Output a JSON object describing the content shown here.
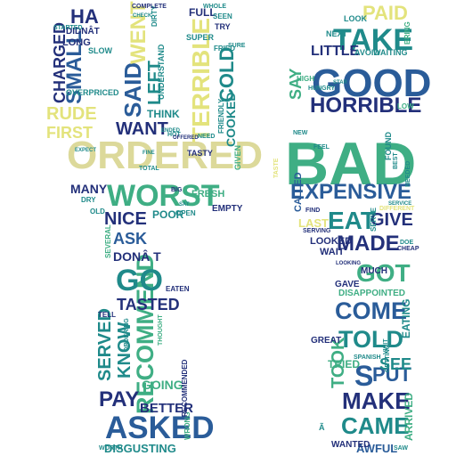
{
  "palette": {
    "navy": "#23307a",
    "blue": "#2a5c99",
    "teal": "#1f8a8a",
    "green": "#3fae84",
    "lime": "#7cc96e",
    "yellow": "#e3e37c",
    "pale": "#dcd99a",
    "background": "#ffffff"
  },
  "words": [
    {
      "text": "BAD",
      "color": "green"
    },
    {
      "text": "ORDERED",
      "color": "pale"
    },
    {
      "text": "RECOMMEND",
      "color": "green"
    },
    {
      "text": "GOOD",
      "color": "blue"
    },
    {
      "text": "WORST",
      "color": "green"
    },
    {
      "text": "ASKED",
      "color": "blue"
    },
    {
      "text": "HORRIBLE",
      "color": "navy"
    },
    {
      "text": "EXPENSIVE",
      "color": "blue"
    },
    {
      "text": "TAKE",
      "color": "teal"
    },
    {
      "text": "TERRIBLE",
      "color": "yellow"
    },
    {
      "text": "EAT",
      "color": "teal"
    },
    {
      "text": "MADE",
      "color": "navy"
    },
    {
      "text": "COME",
      "color": "blue"
    },
    {
      "text": "TOLD",
      "color": "teal"
    },
    {
      "text": "MAKE",
      "color": "navy"
    },
    {
      "text": "CAME",
      "color": "teal"
    },
    {
      "text": "PAY",
      "color": "navy"
    },
    {
      "text": "GO",
      "color": "teal"
    },
    {
      "text": "GOT",
      "color": "green"
    },
    {
      "text": "SERVED",
      "color": "teal"
    },
    {
      "text": "KNOW",
      "color": "teal"
    },
    {
      "text": "SAID",
      "color": "blue"
    },
    {
      "text": "WENT",
      "color": "yellow"
    },
    {
      "text": "SMALL",
      "color": "blue"
    },
    {
      "text": "RUDE",
      "color": "yellow"
    },
    {
      "text": "CHARGED",
      "color": "navy"
    },
    {
      "text": "FIRST",
      "color": "yellow"
    },
    {
      "text": "WANT",
      "color": "navy"
    },
    {
      "text": "LEFT",
      "color": "teal"
    },
    {
      "text": "COLD",
      "color": "teal"
    },
    {
      "text": "COOKED",
      "color": "teal"
    },
    {
      "text": "NICE",
      "color": "navy"
    },
    {
      "text": "ASK",
      "color": "blue"
    },
    {
      "text": "TASTED",
      "color": "navy"
    },
    {
      "text": "BETTER",
      "color": "navy"
    },
    {
      "text": "GOING",
      "color": "green"
    },
    {
      "text": "TOOK",
      "color": "green"
    },
    {
      "text": "PAID",
      "color": "yellow"
    },
    {
      "text": "SAY",
      "color": "green"
    },
    {
      "text": "GIVE",
      "color": "navy"
    },
    {
      "text": "PUT",
      "color": "blue"
    },
    {
      "text": "SEE",
      "color": "teal"
    },
    {
      "text": "S",
      "color": "blue"
    },
    {
      "text": "LITTLE",
      "color": "navy"
    },
    {
      "text": "LAST",
      "color": "yellow"
    },
    {
      "text": "HA",
      "color": "navy"
    },
    {
      "text": "MANY",
      "color": "navy"
    },
    {
      "text": "DISGUSTING",
      "color": "teal"
    },
    {
      "text": "AWFUL",
      "color": "blue"
    },
    {
      "text": "ARRIVED",
      "color": "green"
    },
    {
      "text": "EATING",
      "color": "teal"
    },
    {
      "text": "THINK",
      "color": "teal"
    },
    {
      "text": "POOR",
      "color": "teal"
    },
    {
      "text": "DONÂ T",
      "color": "navy"
    },
    {
      "text": "TRIED",
      "color": "green"
    },
    {
      "text": "WAIT",
      "color": "navy"
    },
    {
      "text": "LOOKED",
      "color": "navy"
    },
    {
      "text": "FRESH",
      "color": "green"
    },
    {
      "text": "DISAPPOINTED",
      "color": "green"
    },
    {
      "text": "CALLED",
      "color": "blue"
    },
    {
      "text": "MUCH",
      "color": "navy"
    },
    {
      "text": "GAVE",
      "color": "navy"
    },
    {
      "text": "FULL",
      "color": "navy"
    },
    {
      "text": "LONG",
      "color": "navy"
    },
    {
      "text": "EMPTY",
      "color": "navy"
    },
    {
      "text": "TASTY",
      "color": "navy"
    },
    {
      "text": "GREAT",
      "color": "navy"
    },
    {
      "text": "WANTED",
      "color": "navy"
    },
    {
      "text": "SUPER",
      "color": "teal"
    },
    {
      "text": "NEXT",
      "color": "teal"
    },
    {
      "text": "LOOK",
      "color": "teal"
    },
    {
      "text": "SEEN",
      "color": "teal"
    },
    {
      "text": "TRY",
      "color": "navy"
    },
    {
      "text": "FRIED",
      "color": "teal"
    },
    {
      "text": "UNDERSTAND",
      "color": "teal"
    },
    {
      "text": "OVERPRICED",
      "color": "teal"
    },
    {
      "text": "DIDNÂT",
      "color": "navy"
    },
    {
      "text": "STARTED",
      "color": "teal"
    },
    {
      "text": "SLOW",
      "color": "teal"
    },
    {
      "text": "FRIENDLY",
      "color": "teal"
    },
    {
      "text": "GIVEN",
      "color": "green"
    },
    {
      "text": "NEED",
      "color": "teal"
    },
    {
      "text": "OPEN",
      "color": "teal"
    },
    {
      "text": "WORTH",
      "color": "teal"
    },
    {
      "text": "WRONG",
      "color": "green"
    },
    {
      "text": "TELL",
      "color": "navy"
    },
    {
      "text": "EATEN",
      "color": "navy"
    },
    {
      "text": "SEVERAL",
      "color": "green"
    },
    {
      "text": "RECOMMENDED",
      "color": "navy"
    },
    {
      "text": "ORDERING",
      "color": "teal"
    },
    {
      "text": "TOTAL",
      "color": "teal"
    },
    {
      "text": "FINE",
      "color": "teal"
    },
    {
      "text": "OLD",
      "color": "teal"
    },
    {
      "text": "DRY",
      "color": "teal"
    },
    {
      "text": "DIRTY",
      "color": "teal"
    },
    {
      "text": "CHECK",
      "color": "teal"
    },
    {
      "text": "HIGH",
      "color": "green"
    },
    {
      "text": "AVOID",
      "color": "teal"
    },
    {
      "text": "WAITING",
      "color": "teal"
    },
    {
      "text": "BRING",
      "color": "green"
    },
    {
      "text": "LOW",
      "color": "green"
    },
    {
      "text": "SERVE",
      "color": "teal"
    },
    {
      "text": "FOUND",
      "color": "teal"
    },
    {
      "text": "FEEL",
      "color": "teal"
    },
    {
      "text": "FIND",
      "color": "navy"
    },
    {
      "text": "SERVING",
      "color": "navy"
    },
    {
      "text": "CHEAP",
      "color": "navy"
    },
    {
      "text": "LOOKING",
      "color": "navy"
    },
    {
      "text": "DOE",
      "color": "teal"
    },
    {
      "text": "SPANISH",
      "color": "teal"
    },
    {
      "text": "SAW",
      "color": "teal"
    },
    {
      "text": "NEW",
      "color": "teal"
    },
    {
      "text": "GETTING",
      "color": "teal"
    },
    {
      "text": "BEST",
      "color": "teal"
    },
    {
      "text": "VISIT",
      "color": "teal"
    },
    {
      "text": "DIFFERENT",
      "color": "yellow"
    },
    {
      "text": "NEEDED",
      "color": "teal"
    },
    {
      "text": "TASTE",
      "color": "yellow"
    },
    {
      "text": "SURE",
      "color": "teal"
    },
    {
      "text": "HOT",
      "color": "teal"
    },
    {
      "text": "BIG",
      "color": "navy"
    },
    {
      "text": "HUNGRY",
      "color": "teal"
    },
    {
      "text": "COMPLETE",
      "color": "navy"
    },
    {
      "text": "STAR",
      "color": "teal"
    },
    {
      "text": "EXPECT",
      "color": "teal"
    },
    {
      "text": "OFFERED",
      "color": "navy"
    },
    {
      "text": "ENDED",
      "color": "teal"
    },
    {
      "text": "WHOLE",
      "color": "teal"
    },
    {
      "text": "SAT",
      "color": "teal"
    },
    {
      "text": "Ã",
      "color": "teal"
    },
    {
      "text": "THOUGHT",
      "color": "green"
    },
    {
      "text": "SERVICE",
      "color": "teal"
    }
  ]
}
